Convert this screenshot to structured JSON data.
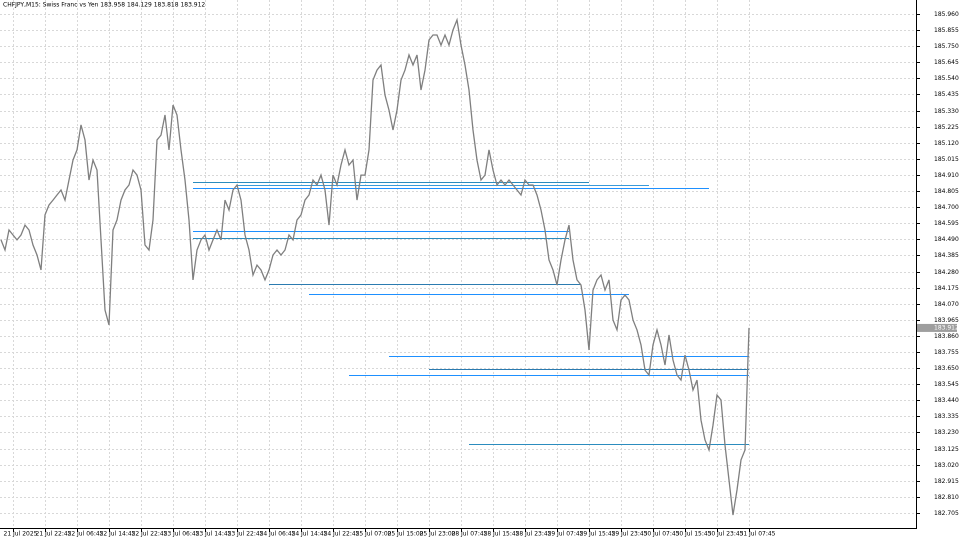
{
  "chart_data": {
    "type": "line",
    "title": "CHFJPY,M15: Swiss Franc vs Yen 183.958 184.129 183.818 183.912",
    "current_price": {
      "value": 183.912,
      "label": "183.912"
    },
    "categories": [
      null,
      null,
      null,
      "21 Jul 2025",
      null,
      null,
      null,
      null,
      null,
      null,
      null,
      "21 Jul 22:45",
      null,
      null,
      null,
      null,
      null,
      null,
      null,
      "22 Jul 06:45",
      null,
      null,
      null,
      null,
      null,
      null,
      null,
      "22 Jul 14:45",
      null,
      null,
      null,
      null,
      null,
      null,
      null,
      "22 Jul 22:45",
      null,
      null,
      null,
      null,
      null,
      null,
      null,
      "23 Jul 06:45",
      null,
      null,
      null,
      null,
      null,
      null,
      null,
      "23 Jul 14:45",
      null,
      null,
      null,
      null,
      null,
      null,
      null,
      "23 Jul 22:45",
      null,
      null,
      null,
      null,
      null,
      null,
      null,
      "24 Jul 06:45",
      null,
      null,
      null,
      null,
      null,
      null,
      null,
      "24 Jul 14:45",
      null,
      null,
      null,
      null,
      null,
      null,
      null,
      "24 Jul 22:45",
      null,
      null,
      null,
      null,
      null,
      null,
      null,
      "25 Jul 07:00",
      null,
      null,
      null,
      null,
      null,
      null,
      null,
      "25 Jul 15:00",
      null,
      null,
      null,
      null,
      null,
      null,
      null,
      "25 Jul 23:00",
      null,
      null,
      null,
      null,
      null,
      null,
      null,
      "28 Jul 07:45",
      null,
      null,
      null,
      null,
      null,
      null,
      null,
      "28 Jul 15:45",
      null,
      null,
      null,
      null,
      null,
      null,
      null,
      "28 Jul 23:45",
      null,
      null,
      null,
      null,
      null,
      null,
      null,
      "29 Jul 07:45",
      null,
      null,
      null,
      null,
      null,
      null,
      null,
      "29 Jul 15:45",
      null,
      null,
      null,
      null,
      null,
      null,
      null,
      "29 Jul 23:45",
      null,
      null,
      null,
      null,
      null,
      null,
      null,
      "30 Jul 07:45",
      null,
      null,
      null,
      null,
      null,
      null,
      null,
      "30 Jul 15:45",
      null,
      null,
      null,
      null,
      null,
      null,
      null,
      "30 Jul 23:45",
      null,
      null,
      null,
      null,
      null,
      null,
      null,
      "31 Jul 07:45"
    ],
    "series": [
      {
        "name": "CHFJPY",
        "color": "#7f7f7f",
        "values": [
          184.486,
          184.42,
          184.551,
          184.518,
          184.486,
          184.518,
          184.583,
          184.551,
          184.453,
          184.388,
          184.29,
          184.649,
          184.714,
          184.746,
          184.779,
          184.812,
          184.746,
          184.877,
          185.007,
          185.073,
          185.236,
          185.138,
          184.877,
          185.007,
          184.942,
          184.486,
          184.029,
          183.932,
          184.551,
          184.616,
          184.746,
          184.812,
          184.844,
          184.942,
          184.909,
          184.812,
          184.453,
          184.42,
          184.616,
          185.138,
          185.17,
          185.301,
          185.073,
          185.366,
          185.301,
          185.073,
          184.877,
          184.616,
          184.225,
          184.42,
          184.486,
          184.518,
          184.42,
          184.486,
          184.551,
          184.486,
          184.746,
          184.681,
          184.812,
          184.844,
          184.746,
          184.518,
          184.42,
          184.257,
          184.322,
          184.29,
          184.225,
          184.29,
          184.388,
          184.42,
          184.388,
          184.42,
          184.518,
          184.486,
          184.616,
          184.649,
          184.746,
          184.779,
          184.877,
          184.844,
          184.909,
          184.812,
          184.583,
          184.909,
          184.844,
          184.975,
          185.073,
          184.975,
          185.007,
          184.746,
          184.909,
          184.909,
          185.073,
          185.529,
          185.594,
          185.627,
          185.431,
          185.333,
          185.203,
          185.333,
          185.529,
          185.594,
          185.692,
          185.627,
          185.692,
          185.464,
          185.594,
          185.79,
          185.823,
          185.823,
          185.757,
          185.823,
          185.757,
          185.855,
          185.921,
          185.757,
          185.627,
          185.464,
          185.203,
          185.007,
          184.877,
          184.909,
          185.073,
          184.942,
          184.844,
          184.877,
          184.844,
          184.877,
          184.844,
          184.812,
          184.779,
          184.877,
          184.844,
          184.844,
          184.779,
          184.681,
          184.551,
          184.355,
          184.29,
          184.192,
          184.355,
          184.486,
          184.583,
          184.355,
          184.225,
          184.192,
          184.029,
          183.768,
          184.159,
          184.225,
          184.257,
          184.159,
          184.225,
          183.964,
          183.899,
          184.094,
          184.127,
          184.094,
          183.964,
          183.899,
          183.801,
          183.637,
          183.605,
          183.801,
          183.899,
          183.801,
          183.67,
          183.866,
          183.703,
          183.605,
          183.572,
          183.735,
          183.637,
          183.507,
          183.572,
          183.311,
          183.181,
          183.116,
          183.278,
          183.474,
          183.442,
          183.148,
          182.92,
          182.692,
          182.855,
          183.051,
          183.116,
          183.912
        ]
      }
    ],
    "levels": [
      {
        "value": 184.864,
        "start": 48,
        "end": 147,
        "color": "#2b8cbe"
      },
      {
        "value": 184.844,
        "start": 59,
        "end": 162,
        "color": "#3a9ad9"
      },
      {
        "value": 184.825,
        "start": 48,
        "end": 177,
        "color": "#1e90ff"
      },
      {
        "value": 184.544,
        "start": 48,
        "end": 142,
        "color": "#1e90ff"
      },
      {
        "value": 184.499,
        "start": 48,
        "end": 142,
        "color": "#2b8cbe"
      },
      {
        "value": 184.198,
        "start": 67,
        "end": 145,
        "color": "#2b7bb0"
      },
      {
        "value": 184.133,
        "start": 77,
        "end": 157,
        "color": "#1e90ff"
      },
      {
        "value": 183.729,
        "start": 97,
        "end": 187,
        "color": "#1e90ff"
      },
      {
        "value": 183.644,
        "start": 107,
        "end": 187,
        "color": "#2b7bb0"
      },
      {
        "value": 183.605,
        "start": 87,
        "end": 187,
        "color": "#1e90ff"
      },
      {
        "value": 183.155,
        "start": 117,
        "end": 187,
        "color": "#2b8cbe"
      }
    ],
    "ylim": [
      182.607,
      186.051
    ],
    "yticks": [
      {
        "value": 185.96,
        "label": "185.960"
      },
      {
        "value": 185.855,
        "label": "185.855"
      },
      {
        "value": 185.75,
        "label": "185.750"
      },
      {
        "value": 185.645,
        "label": "185.645"
      },
      {
        "value": 185.54,
        "label": "185.540"
      },
      {
        "value": 185.435,
        "label": "185.435"
      },
      {
        "value": 185.33,
        "label": "185.330"
      },
      {
        "value": 185.225,
        "label": "185.225"
      },
      {
        "value": 185.12,
        "label": "185.120"
      },
      {
        "value": 185.015,
        "label": "185.015"
      },
      {
        "value": 184.91,
        "label": "184.910"
      },
      {
        "value": 184.805,
        "label": "184.805"
      },
      {
        "value": 184.7,
        "label": "184.700"
      },
      {
        "value": 184.595,
        "label": "184.595"
      },
      {
        "value": 184.49,
        "label": "184.490"
      },
      {
        "value": 184.385,
        "label": "184.385"
      },
      {
        "value": 184.28,
        "label": "184.280"
      },
      {
        "value": 184.175,
        "label": "184.175"
      },
      {
        "value": 184.07,
        "label": "184.070"
      },
      {
        "value": 183.965,
        "label": "183.965"
      },
      {
        "value": 183.86,
        "label": "183.860"
      },
      {
        "value": 183.755,
        "label": "183.755"
      },
      {
        "value": 183.65,
        "label": "183.650"
      },
      {
        "value": 183.545,
        "label": "183.545"
      },
      {
        "value": 183.44,
        "label": "183.440"
      },
      {
        "value": 183.335,
        "label": "183.335"
      },
      {
        "value": 183.23,
        "label": "183.230"
      },
      {
        "value": 183.125,
        "label": "183.125"
      },
      {
        "value": 183.02,
        "label": "183.020"
      },
      {
        "value": 182.915,
        "label": "182.915"
      },
      {
        "value": 182.81,
        "label": "182.810"
      },
      {
        "value": 182.705,
        "label": "182.705"
      }
    ],
    "grid": true
  }
}
